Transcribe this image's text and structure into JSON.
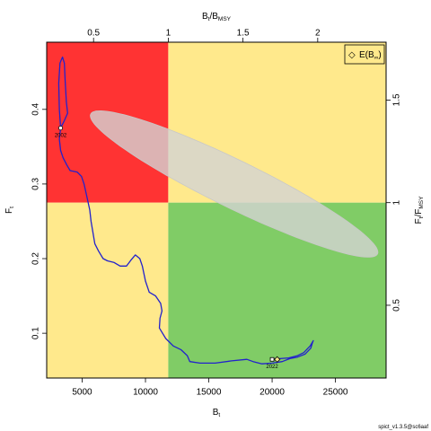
{
  "chart_data": {
    "type": "line",
    "xlabel_main": "B",
    "xlabel_sub": "t",
    "ylabel_main": "F",
    "ylabel_sub": "t",
    "top_label_main": "B",
    "top_label_sub1": "t",
    "top_label_mid": "/B",
    "top_label_sub2": "MSY",
    "right_label_main": "F",
    "right_label_sub1": "t",
    "right_label_mid": "/F",
    "right_label_sub2": "MSY",
    "xlim": [
      2200,
      29000
    ],
    "ylim": [
      0.04,
      0.49
    ],
    "bmsy": 11800,
    "fmsy": 0.275,
    "x_ticks": [
      5000,
      10000,
      15000,
      20000,
      25000
    ],
    "x_tick_labels": [
      "5000",
      "10000",
      "15000",
      "20000",
      "25000"
    ],
    "y_ticks": [
      0.1,
      0.2,
      0.3,
      0.4
    ],
    "y_tick_labels": [
      "0.1",
      "0.2",
      "0.3",
      "0.4"
    ],
    "top_ticks": [
      0.5,
      1,
      1.5,
      2
    ],
    "top_tick_labels": [
      "0.5",
      "1",
      "1.5",
      "2"
    ],
    "right_ticks": [
      0.5,
      1,
      1.5
    ],
    "right_tick_labels": [
      "0.5",
      "1",
      "1.5"
    ],
    "zones": {
      "overfished_overfishing": "#ff3333",
      "healthy_overfishing": "#ffe98c",
      "overfished_ok": "#ffe98c",
      "healthy_ok": "#80cc66"
    },
    "trajectory_color": "#2222cc",
    "ellipse_fill": "#d3d3d3",
    "start_point": {
      "x": 3300,
      "y": 0.375,
      "label": "2002"
    },
    "end_point": {
      "x": 20000,
      "y": 0.065,
      "label": "2022"
    },
    "equilibrium_point": {
      "x": 20400,
      "y": 0.065
    },
    "legend": {
      "symbol": "◇",
      "label_main": "E(B",
      "label_sub": "∞",
      "label_end": ")",
      "position": "top-right"
    },
    "footer": "spict_v1.3.5@sc6aaf",
    "trajectory": [
      [
        3300,
        0.375
      ],
      [
        3200,
        0.4
      ],
      [
        3150,
        0.435
      ],
      [
        3250,
        0.462
      ],
      [
        3450,
        0.47
      ],
      [
        3600,
        0.462
      ],
      [
        3650,
        0.44
      ],
      [
        3750,
        0.41
      ],
      [
        3850,
        0.395
      ],
      [
        3600,
        0.385
      ],
      [
        3300,
        0.375
      ],
      [
        3200,
        0.36
      ],
      [
        3300,
        0.345
      ],
      [
        3500,
        0.335
      ],
      [
        3800,
        0.325
      ],
      [
        4050,
        0.318
      ],
      [
        4600,
        0.316
      ],
      [
        4950,
        0.31
      ],
      [
        5150,
        0.3
      ],
      [
        5350,
        0.285
      ],
      [
        5600,
        0.265
      ],
      [
        5700,
        0.25
      ],
      [
        5850,
        0.235
      ],
      [
        6000,
        0.22
      ],
      [
        6300,
        0.21
      ],
      [
        6650,
        0.2
      ],
      [
        7000,
        0.197
      ],
      [
        7500,
        0.195
      ],
      [
        8000,
        0.19
      ],
      [
        8500,
        0.19
      ],
      [
        8850,
        0.198
      ],
      [
        9200,
        0.205
      ],
      [
        9550,
        0.2
      ],
      [
        9750,
        0.19
      ],
      [
        10000,
        0.17
      ],
      [
        10300,
        0.155
      ],
      [
        10800,
        0.15
      ],
      [
        11200,
        0.14
      ],
      [
        11300,
        0.13
      ],
      [
        11150,
        0.12
      ],
      [
        11100,
        0.107
      ],
      [
        11600,
        0.093
      ],
      [
        12200,
        0.083
      ],
      [
        12800,
        0.078
      ],
      [
        13300,
        0.07
      ],
      [
        13500,
        0.062
      ],
      [
        14300,
        0.06
      ],
      [
        15500,
        0.06
      ],
      [
        16800,
        0.063
      ],
      [
        18000,
        0.065
      ],
      [
        18500,
        0.062
      ],
      [
        19200,
        0.059
      ],
      [
        20000,
        0.06
      ],
      [
        20800,
        0.062
      ],
      [
        21400,
        0.066
      ],
      [
        22000,
        0.068
      ],
      [
        22600,
        0.072
      ],
      [
        23050,
        0.08
      ],
      [
        23200,
        0.088
      ],
      [
        23250,
        0.09
      ],
      [
        23000,
        0.083
      ],
      [
        22500,
        0.074
      ],
      [
        22000,
        0.07
      ],
      [
        21300,
        0.067
      ],
      [
        20600,
        0.066
      ],
      [
        20000,
        0.065
      ]
    ],
    "ellipse": {
      "cx": 17000,
      "cy": 0.3,
      "a": 12600,
      "b": 0.032,
      "angle_deg": -26
    }
  }
}
